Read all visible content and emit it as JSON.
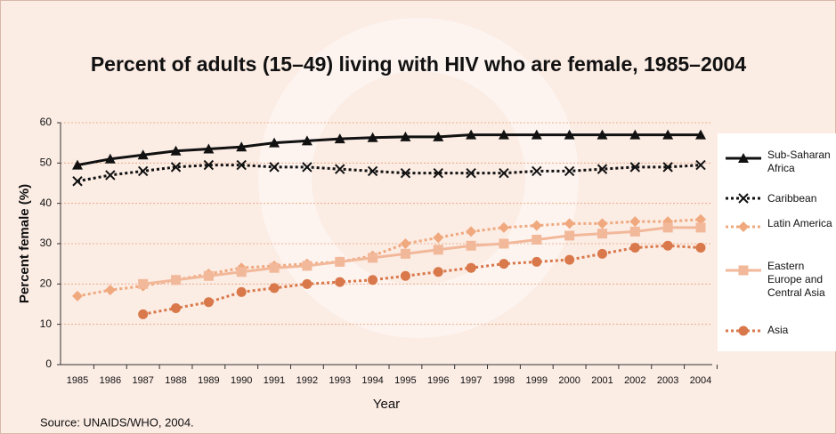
{
  "chart_data": {
    "type": "line",
    "title": "Percent of adults (15–49) living with HIV who are female, 1985–2004",
    "x_label": "Year",
    "y_label": "Percent female (%)",
    "source": "Source: UNAIDS/WHO, 2004.",
    "categories": [
      "1985",
      "1986",
      "1987",
      "1988",
      "1989",
      "1990",
      "1991",
      "1992",
      "1993",
      "1994",
      "1995",
      "1996",
      "1997",
      "1998",
      "1999",
      "2000",
      "2001",
      "2002",
      "2003",
      "2004"
    ],
    "ylim": [
      0,
      60
    ],
    "yticks": [
      0,
      10,
      20,
      30,
      40,
      50,
      60
    ],
    "grid": true,
    "legend": "right",
    "series": [
      {
        "name": "Sub-Saharan Africa",
        "color": "#111111",
        "marker": "triangle",
        "line_style": "solid",
        "values": [
          49.5,
          51,
          52,
          53,
          53.5,
          54,
          55,
          55.5,
          56,
          56.3,
          56.5,
          56.5,
          57,
          57,
          57,
          57,
          57,
          57,
          57,
          57
        ]
      },
      {
        "name": "Caribbean",
        "color": "#111111",
        "marker": "x",
        "line_style": "dotted",
        "values": [
          45.5,
          47,
          48,
          49,
          49.5,
          49.5,
          49,
          49,
          48.5,
          48,
          47.5,
          47.5,
          47.5,
          47.5,
          48,
          48,
          48.5,
          49,
          49,
          49.5
        ]
      },
      {
        "name": "Latin America",
        "color": "#f0a97f",
        "marker": "diamond",
        "line_style": "dotted",
        "values": [
          17,
          18.5,
          19.5,
          21,
          22.5,
          24,
          24.5,
          25,
          25.5,
          27,
          30,
          31.5,
          33,
          34,
          34.5,
          35,
          35,
          35.5,
          35.5,
          36
        ]
      },
      {
        "name": "Eastern Europe and Central Asia",
        "color": "#f2b89a",
        "marker": "square",
        "line_style": "solid",
        "values": [
          null,
          null,
          20,
          21,
          22,
          23,
          24,
          24.5,
          25.5,
          26.5,
          27.5,
          28.5,
          29.5,
          30,
          31,
          32,
          32.5,
          33,
          34,
          34
        ]
      },
      {
        "name": "Asia",
        "color": "#d9784a",
        "marker": "circle",
        "line_style": "dotted",
        "values": [
          null,
          null,
          12.5,
          14,
          15.5,
          18,
          19,
          20,
          20.5,
          21,
          22,
          23,
          24,
          25,
          25.5,
          26,
          27.5,
          29,
          29.5,
          29
        ]
      }
    ]
  }
}
